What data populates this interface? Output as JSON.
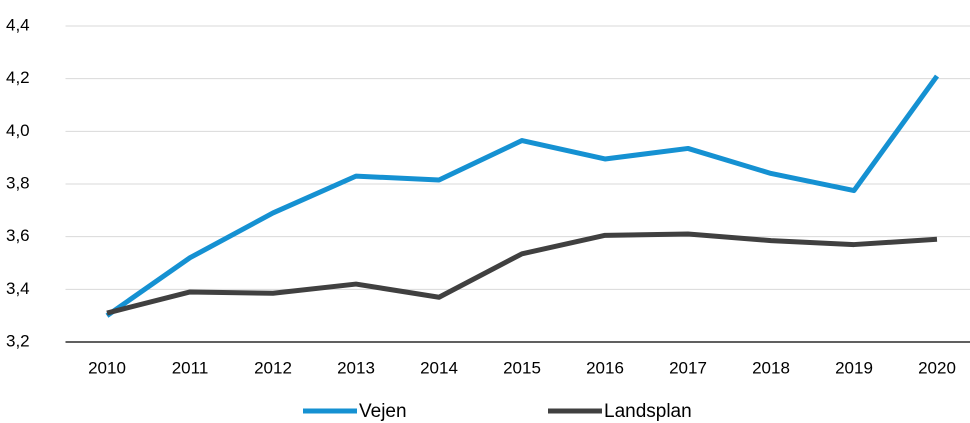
{
  "chart_data": {
    "type": "line",
    "categories": [
      "2010",
      "2011",
      "2012",
      "2013",
      "2014",
      "2015",
      "2016",
      "2017",
      "2018",
      "2019",
      "2020"
    ],
    "series": [
      {
        "name": "Vejen",
        "color": "#1591d2",
        "values": [
          3.3,
          3.52,
          3.69,
          3.83,
          3.815,
          3.965,
          3.895,
          3.935,
          3.84,
          3.775,
          4.21
        ]
      },
      {
        "name": "Landsplan",
        "color": "#404040",
        "values": [
          3.31,
          3.39,
          3.385,
          3.42,
          3.37,
          3.535,
          3.605,
          3.61,
          3.585,
          3.57,
          3.59
        ]
      }
    ],
    "ylim": [
      3.2,
      4.4
    ],
    "yticks": [
      {
        "value": 3.2,
        "label": "3,2"
      },
      {
        "value": 3.4,
        "label": "3,4"
      },
      {
        "value": 3.6,
        "label": "3,6"
      },
      {
        "value": 3.8,
        "label": "3,8"
      },
      {
        "value": 4.0,
        "label": "4,0"
      },
      {
        "value": 4.2,
        "label": "4,2"
      },
      {
        "value": 4.4,
        "label": "4,4"
      }
    ],
    "grid": true,
    "legend": "bottom"
  }
}
